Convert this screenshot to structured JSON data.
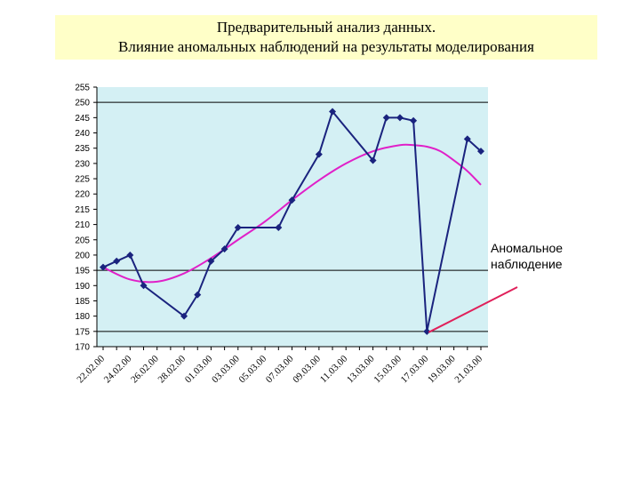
{
  "title": {
    "line1": "Предварительный анализ данных.",
    "line2": "Влияние аномальных наблюдений на результаты моделирования"
  },
  "colors": {
    "title_background": "#ffffc8",
    "plot_background": "#d4f0f4",
    "data_line": "#1a237e",
    "trend_line": "#e020c8",
    "annotation_arrow": "#e0205a"
  },
  "annotation": {
    "text_line1": "Аномальное",
    "text_line2": "наблюдение"
  },
  "chart_data": {
    "type": "line",
    "title": "",
    "xlabel": "",
    "ylabel": "",
    "ylim": [
      170,
      255
    ],
    "yticks": [
      170,
      175,
      180,
      185,
      190,
      195,
      200,
      205,
      210,
      215,
      220,
      225,
      230,
      235,
      240,
      245,
      250,
      255
    ],
    "horizontal_reference_lines": [
      175,
      195,
      250
    ],
    "grid": false,
    "legend": "none",
    "x_tick_labels": [
      "22.02.00",
      "24.02.00",
      "26.02.00",
      "28.02.00",
      "01.03.00",
      "03.03.00",
      "05.03.00",
      "07.03.00",
      "09.03.00",
      "11.03.00",
      "13.03.00",
      "15.03.00",
      "17.03.00",
      "19.03.00",
      "21.03.00"
    ],
    "x_count": 29,
    "series": [
      {
        "kind": "observed",
        "points": [
          {
            "x": 0,
            "y": 196
          },
          {
            "x": 1,
            "y": 198
          },
          {
            "x": 2,
            "y": 200
          },
          {
            "x": 3,
            "y": 190
          },
          {
            "x": 6,
            "y": 180
          },
          {
            "x": 7,
            "y": 187
          },
          {
            "x": 8,
            "y": 198
          },
          {
            "x": 9,
            "y": 202
          },
          {
            "x": 10,
            "y": 209
          },
          {
            "x": 13,
            "y": 209
          },
          {
            "x": 14,
            "y": 218
          },
          {
            "x": 16,
            "y": 233
          },
          {
            "x": 17,
            "y": 247
          },
          {
            "x": 20,
            "y": 231
          },
          {
            "x": 21,
            "y": 245
          },
          {
            "x": 22,
            "y": 245
          },
          {
            "x": 23,
            "y": 244
          },
          {
            "x": 24,
            "y": 175
          },
          {
            "x": 27,
            "y": 238
          },
          {
            "x": 28,
            "y": 234
          }
        ]
      },
      {
        "kind": "trend",
        "points": [
          {
            "x": 0,
            "y": 196
          },
          {
            "x": 2,
            "y": 192
          },
          {
            "x": 4,
            "y": 191.3
          },
          {
            "x": 6,
            "y": 194
          },
          {
            "x": 8,
            "y": 199
          },
          {
            "x": 10,
            "y": 205
          },
          {
            "x": 12,
            "y": 211
          },
          {
            "x": 14,
            "y": 218
          },
          {
            "x": 16,
            "y": 224.5
          },
          {
            "x": 18,
            "y": 230
          },
          {
            "x": 20,
            "y": 234
          },
          {
            "x": 22,
            "y": 236
          },
          {
            "x": 23,
            "y": 236
          },
          {
            "x": 24,
            "y": 235.5
          },
          {
            "x": 25,
            "y": 234
          },
          {
            "x": 26,
            "y": 231
          },
          {
            "x": 27,
            "y": 227.5
          },
          {
            "x": 28,
            "y": 223
          }
        ]
      }
    ]
  }
}
